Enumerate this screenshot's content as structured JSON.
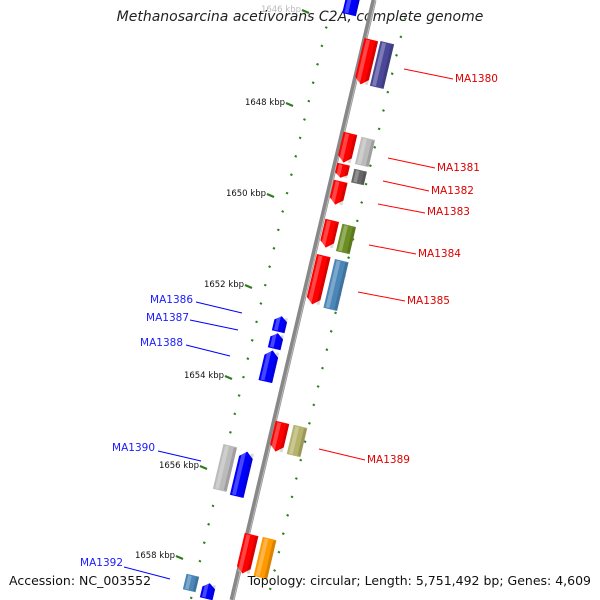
{
  "title": "Methanosarcina acetivorans C2A, complete genome",
  "footer": {
    "accession": "Accession: NC_003552",
    "summary": "Topology: circular; Length: 5,751,492 bp; Genes: 4,609"
  },
  "ticks": [
    {
      "label": "1646 kbp",
      "faded": true
    },
    {
      "label": "1648 kbp"
    },
    {
      "label": "1650 kbp"
    },
    {
      "label": "1652 kbp"
    },
    {
      "label": "1654 kbp"
    },
    {
      "label": "1656 kbp"
    },
    {
      "label": "1658 kbp"
    }
  ],
  "gene_labels": {
    "forward": [
      "MA1380",
      "MA1381",
      "MA1382",
      "MA1383",
      "MA1384",
      "MA1385",
      "MA1389"
    ],
    "reverse": [
      "MA1386",
      "MA1387",
      "MA1388",
      "MA1390",
      "MA1392"
    ]
  },
  "colors": {
    "forward_strand": "#ff0000",
    "reverse_strand": "#0000ff",
    "backbone": "#888888",
    "tick": "#2e7d1f",
    "cog_purple": "#4b4899",
    "cog_gray": "#bbbbbb",
    "cog_dark_gray": "#666666",
    "cog_olive": "#6b8e23",
    "cog_steel_blue": "#4a86b8",
    "cog_khaki": "#b5b26a",
    "cog_orange": "#ff9900"
  }
}
